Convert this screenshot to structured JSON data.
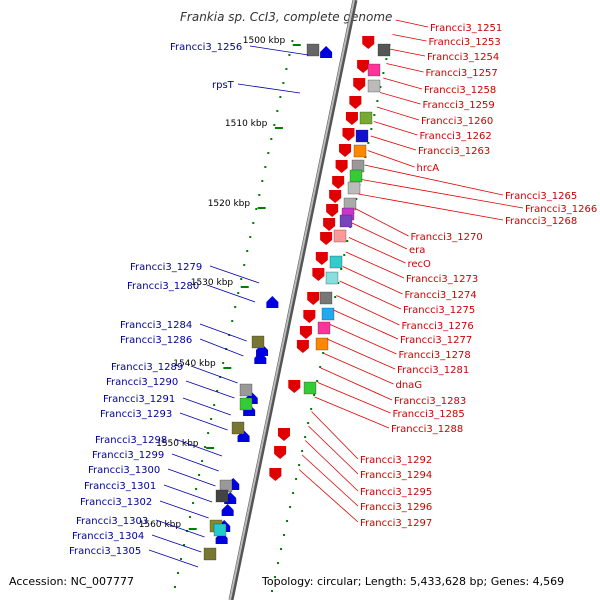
{
  "title": "Frankia sp. CcI3, complete genome",
  "footer": {
    "accession": "Accession: NC_007777",
    "topology": "Topology: circular; Length: 5,433,628 bp; Genes: 4,569"
  },
  "colors": {
    "forward_gene": "#e00000",
    "reverse_gene": "#0000e0",
    "forward_label": "#cc0000",
    "reverse_label": "#000099",
    "scale_tick": "#008000",
    "axis": "#888888"
  },
  "scale_marks": [
    "1500 kbp",
    "1510 kbp",
    "1520 kbp",
    "1530 kbp",
    "1540 kbp",
    "1550 kbp",
    "1560 kbp"
  ],
  "right_labels": [
    "Francci3_1251",
    "Francci3_1253",
    "Francci3_1254",
    "Francci3_1257",
    "Francci3_1258",
    "Francci3_1259",
    "Francci3_1260",
    "Francci3_1262",
    "Francci3_1263",
    "hrcA",
    "Francci3_1265",
    "Francci3_1266",
    "Francci3_1268",
    "Francci3_1270",
    "era",
    "recO",
    "Francci3_1273",
    "Francci3_1274",
    "Francci3_1275",
    "Francci3_1276",
    "Francci3_1277",
    "Francci3_1278",
    "Francci3_1281",
    "dnaG",
    "Francci3_1283",
    "Francci3_1285",
    "Francci3_1288",
    "Francci3_1292",
    "Francci3_1294",
    "Francci3_1295",
    "Francci3_1296",
    "Francci3_1297"
  ],
  "left_labels": [
    "Francci3_1256",
    "rpsT",
    "Francci3_1279",
    "Francci3_1280",
    "Francci3_1284",
    "Francci3_1286",
    "Francci3_1289",
    "Francci3_1290",
    "Francci3_1291",
    "Francci3_1293",
    "Francci3_1298",
    "Francci3_1299",
    "Francci3_1300",
    "Francci3_1301",
    "Francci3_1302",
    "Francci3_1303",
    "Francci3_1304",
    "Francci3_1305"
  ]
}
